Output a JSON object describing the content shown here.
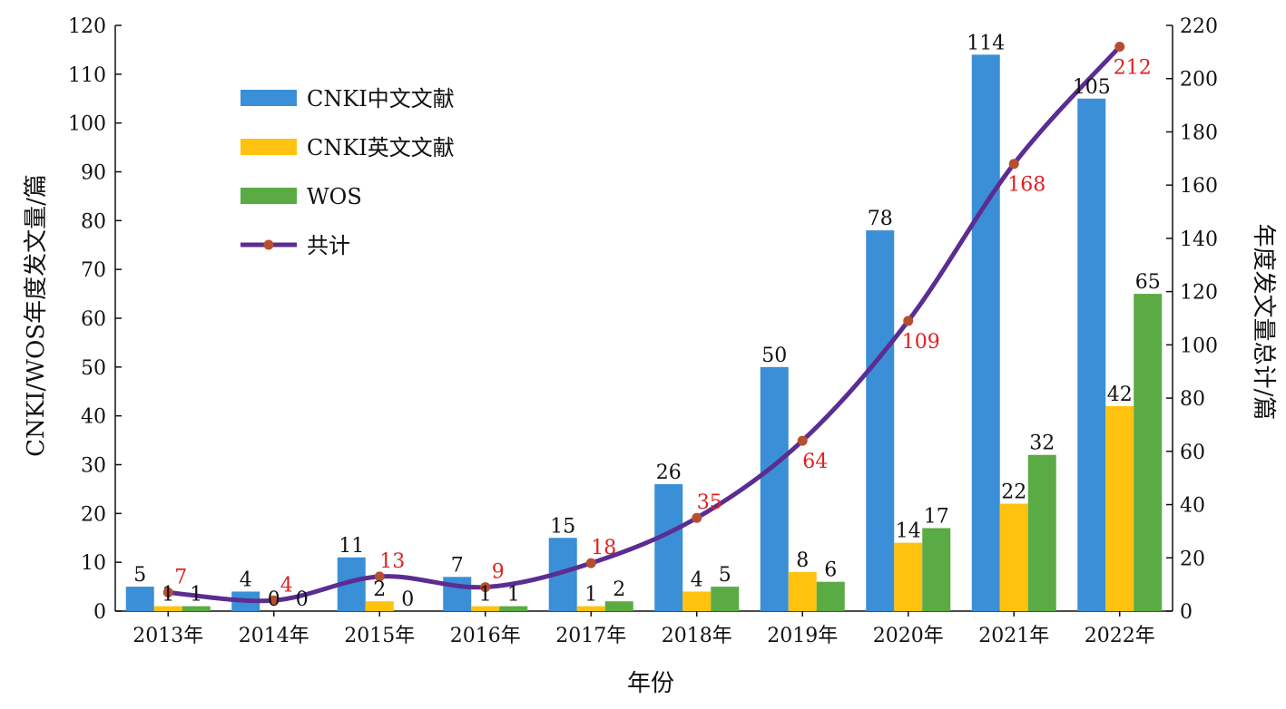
{
  "chart_data": {
    "type": "bar",
    "categories": [
      "2013年",
      "2014年",
      "2015年",
      "2016年",
      "2017年",
      "2018年",
      "2019年",
      "2020年",
      "2021年",
      "2022年"
    ],
    "series": [
      {
        "name": "CNKI中文文献",
        "color": "#3a8fd6",
        "values": [
          5,
          4,
          11,
          7,
          15,
          26,
          50,
          78,
          114,
          105
        ]
      },
      {
        "name": "CNKI英文文献",
        "color": "#ffc20e",
        "values": [
          1,
          0,
          2,
          1,
          1,
          4,
          8,
          14,
          22,
          42
        ]
      },
      {
        "name": "WOS",
        "color": "#5aab44",
        "values": [
          1,
          0,
          0,
          1,
          2,
          5,
          6,
          17,
          32,
          65
        ]
      }
    ],
    "line_series": {
      "name": "共计",
      "type": "line",
      "axis": "right",
      "color": "#5b2d92",
      "marker_color": "#b5502f",
      "label_color": "#e02020",
      "values": [
        7,
        4,
        13,
        9,
        18,
        35,
        64,
        109,
        168,
        212
      ]
    },
    "xlabel": "年份",
    "ylabel": "CNKI/WOS年度发文量/篇",
    "y2label": "年度发文量总计/篇",
    "ylim": [
      0,
      120
    ],
    "y_ticks": [
      0,
      10,
      20,
      30,
      40,
      50,
      60,
      70,
      80,
      90,
      100,
      110,
      120
    ],
    "y2lim": [
      0,
      220
    ],
    "y2_ticks": [
      0,
      20,
      40,
      60,
      80,
      100,
      120,
      140,
      160,
      180,
      200,
      220
    ],
    "legend_position": "top-left",
    "grid": false
  }
}
